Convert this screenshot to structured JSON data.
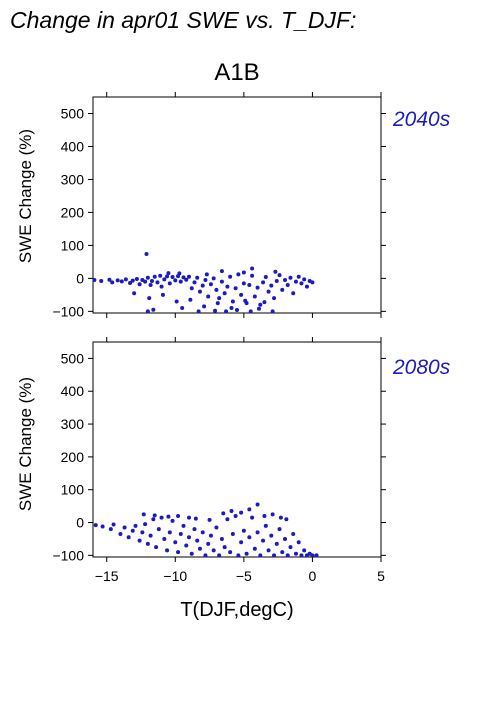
{
  "figure": {
    "title": "Change in apr01 SWE vs. T_DJF:",
    "scenario": "A1B",
    "xlabel": "T(DJF,degC)"
  },
  "colors": {
    "points": "#1b1bbf",
    "label": "#1b1bbf"
  },
  "chart_data": [
    {
      "type": "scatter",
      "panel_label": "2040s",
      "ylabel": "SWE Change (%)",
      "xlim": [
        -16,
        5
      ],
      "ylim": [
        -105,
        550
      ],
      "xticks": [
        -15,
        -10,
        -5,
        0,
        5
      ],
      "xtick_labels": [
        "−15",
        "−10",
        "−5",
        "0",
        "5"
      ],
      "yticks": [
        -100,
        0,
        100,
        200,
        300,
        400,
        500
      ],
      "ytick_labels": [
        "−100",
        "0",
        "100",
        "200",
        "300",
        "400",
        "500"
      ],
      "grid": false,
      "points": [
        [
          -15.9,
          -5
        ],
        [
          -15.4,
          -8
        ],
        [
          -14.8,
          -4
        ],
        [
          -14.6,
          -12
        ],
        [
          -14.2,
          -6
        ],
        [
          -13.9,
          -9
        ],
        [
          -13.6,
          -3
        ],
        [
          -13.3,
          -14
        ],
        [
          -13.1,
          -7
        ],
        [
          -12.8,
          -2
        ],
        [
          -12.6,
          -18
        ],
        [
          -12.4,
          -5
        ],
        [
          -12.2,
          -10
        ],
        [
          -12.0,
          2
        ],
        [
          -11.8,
          -20
        ],
        [
          -11.7,
          -8
        ],
        [
          -11.5,
          5
        ],
        [
          -11.3,
          -12
        ],
        [
          -11.1,
          8
        ],
        [
          -11.0,
          -25
        ],
        [
          -10.8,
          -3
        ],
        [
          -10.6,
          6
        ],
        [
          -10.4,
          -15
        ],
        [
          -10.2,
          4
        ],
        [
          -10.0,
          -6
        ],
        [
          -9.8,
          7
        ],
        [
          -9.6,
          -10
        ],
        [
          -9.4,
          3
        ],
        [
          -9.2,
          -4
        ],
        [
          -9.0,
          5
        ],
        [
          -8.8,
          -30
        ],
        [
          -8.6,
          -12
        ],
        [
          -8.4,
          2
        ],
        [
          -8.2,
          -40
        ],
        [
          -8.0,
          -22
        ],
        [
          -7.8,
          -5
        ],
        [
          -7.6,
          -55
        ],
        [
          -7.4,
          -18
        ],
        [
          -7.2,
          0
        ],
        [
          -7.0,
          -35
        ],
        [
          -6.8,
          -60
        ],
        [
          -6.6,
          -10
        ],
        [
          -6.4,
          -45
        ],
        [
          -6.2,
          -25
        ],
        [
          -6.0,
          5
        ],
        [
          -5.8,
          -70
        ],
        [
          -5.6,
          -30
        ],
        [
          -5.4,
          12
        ],
        [
          -5.2,
          -50
        ],
        [
          -5.0,
          -15
        ],
        [
          -4.8,
          -75
        ],
        [
          -4.6,
          -20
        ],
        [
          -4.4,
          8
        ],
        [
          -4.2,
          -55
        ],
        [
          -4.0,
          -28
        ],
        [
          -3.8,
          -80
        ],
        [
          -3.6,
          -12
        ],
        [
          -3.4,
          4
        ],
        [
          -3.2,
          -40
        ],
        [
          -3.0,
          -22
        ],
        [
          -2.8,
          -60
        ],
        [
          -2.6,
          -8
        ],
        [
          -2.4,
          10
        ],
        [
          -2.2,
          -35
        ],
        [
          -2.0,
          -5
        ],
        [
          -1.8,
          -20
        ],
        [
          -1.6,
          2
        ],
        [
          -1.4,
          -45
        ],
        [
          -1.2,
          -10
        ],
        [
          -1.0,
          5
        ],
        [
          -0.8,
          -15
        ],
        [
          -0.6,
          -3
        ],
        [
          -0.4,
          -25
        ],
        [
          -0.2,
          -8
        ],
        [
          0.0,
          -12
        ],
        [
          -12.0,
          -100
        ],
        [
          -11.6,
          -95
        ],
        [
          -9.5,
          -90
        ],
        [
          -8.3,
          -100
        ],
        [
          -7.1,
          -98
        ],
        [
          -6.3,
          -100
        ],
        [
          -5.5,
          -96
        ],
        [
          -4.5,
          -100
        ],
        [
          -3.9,
          -92
        ],
        [
          -2.9,
          -100
        ],
        [
          -13.0,
          -45
        ],
        [
          -11.9,
          -60
        ],
        [
          -10.9,
          -50
        ],
        [
          -9.9,
          -70
        ],
        [
          -8.9,
          -65
        ],
        [
          -7.9,
          -85
        ],
        [
          -6.9,
          -75
        ],
        [
          -5.9,
          -90
        ],
        [
          -4.9,
          -68
        ],
        [
          -3.5,
          -72
        ],
        [
          -12.1,
          74
        ],
        [
          -4.4,
          30
        ],
        [
          -6.6,
          22
        ],
        [
          -9.7,
          15
        ],
        [
          -5.0,
          18
        ],
        [
          -2.7,
          20
        ],
        [
          -10.5,
          16
        ],
        [
          -7.7,
          12
        ]
      ]
    },
    {
      "type": "scatter",
      "panel_label": "2080s",
      "ylabel": "SWE Change (%)",
      "xlim": [
        -16,
        5
      ],
      "ylim": [
        -105,
        550
      ],
      "xticks": [
        -15,
        -10,
        -5,
        0,
        5
      ],
      "xtick_labels": [
        "−15",
        "−10",
        "−5",
        "0",
        "5"
      ],
      "yticks": [
        -100,
        0,
        100,
        200,
        300,
        400,
        500
      ],
      "ytick_labels": [
        "−100",
        "0",
        "100",
        "200",
        "300",
        "400",
        "500"
      ],
      "grid": false,
      "points": [
        [
          -15.8,
          -8
        ],
        [
          -15.3,
          -12
        ],
        [
          -14.7,
          -20
        ],
        [
          -14.5,
          -6
        ],
        [
          -14.0,
          -35
        ],
        [
          -13.7,
          -15
        ],
        [
          -13.4,
          -45
        ],
        [
          -13.1,
          -25
        ],
        [
          -12.9,
          -10
        ],
        [
          -12.6,
          -55
        ],
        [
          -12.4,
          -30
        ],
        [
          -12.2,
          -5
        ],
        [
          -12.0,
          -65
        ],
        [
          -11.8,
          -40
        ],
        [
          -11.6,
          10
        ],
        [
          -11.4,
          -75
        ],
        [
          -11.2,
          -20
        ],
        [
          -11.0,
          15
        ],
        [
          -10.8,
          -50
        ],
        [
          -10.6,
          -85
        ],
        [
          -10.4,
          -30
        ],
        [
          -10.2,
          5
        ],
        [
          -10.0,
          -60
        ],
        [
          -9.8,
          -90
        ],
        [
          -9.6,
          -35
        ],
        [
          -9.4,
          -10
        ],
        [
          -9.2,
          -70
        ],
        [
          -9.0,
          -45
        ],
        [
          -8.8,
          -95
        ],
        [
          -8.6,
          -20
        ],
        [
          -8.4,
          -55
        ],
        [
          -8.2,
          -80
        ],
        [
          -8.0,
          -30
        ],
        [
          -7.8,
          -100
        ],
        [
          -7.6,
          -65
        ],
        [
          -7.4,
          -40
        ],
        [
          -7.2,
          -85
        ],
        [
          -7.0,
          -15
        ],
        [
          -6.8,
          -100
        ],
        [
          -6.6,
          -50
        ],
        [
          -6.4,
          -75
        ],
        [
          -6.2,
          10
        ],
        [
          -6.0,
          -90
        ],
        [
          -5.8,
          -35
        ],
        [
          -5.6,
          20
        ],
        [
          -5.4,
          -100
        ],
        [
          -5.2,
          -60
        ],
        [
          -5.0,
          -25
        ],
        [
          -4.8,
          -95
        ],
        [
          -4.6,
          -45
        ],
        [
          -4.4,
          15
        ],
        [
          -4.2,
          -80
        ],
        [
          -4.0,
          -30
        ],
        [
          -3.8,
          -100
        ],
        [
          -3.6,
          -55
        ],
        [
          -3.4,
          -10
        ],
        [
          -3.2,
          -85
        ],
        [
          -3.0,
          -40
        ],
        [
          -2.8,
          -100
        ],
        [
          -2.6,
          -65
        ],
        [
          -2.4,
          -20
        ],
        [
          -2.2,
          -90
        ],
        [
          -2.0,
          -50
        ],
        [
          -1.8,
          -100
        ],
        [
          -1.6,
          -75
        ],
        [
          -1.4,
          -35
        ],
        [
          -1.2,
          -95
        ],
        [
          -1.0,
          -60
        ],
        [
          -0.8,
          -100
        ],
        [
          -0.6,
          -85
        ],
        [
          -0.4,
          -100
        ],
        [
          -0.2,
          -95
        ],
        [
          0.0,
          -100
        ],
        [
          0.3,
          -100
        ],
        [
          -12.3,
          25
        ],
        [
          -11.5,
          22
        ],
        [
          -10.5,
          18
        ],
        [
          -9.8,
          20
        ],
        [
          -9.0,
          15
        ],
        [
          -6.5,
          28
        ],
        [
          -5.9,
          35
        ],
        [
          -5.2,
          30
        ],
        [
          -4.6,
          40
        ],
        [
          -4.0,
          55
        ],
        [
          -3.5,
          20
        ],
        [
          -2.9,
          25
        ],
        [
          -2.3,
          15
        ],
        [
          -1.9,
          10
        ],
        [
          -8.5,
          12
        ],
        [
          -7.5,
          8
        ]
      ]
    }
  ]
}
